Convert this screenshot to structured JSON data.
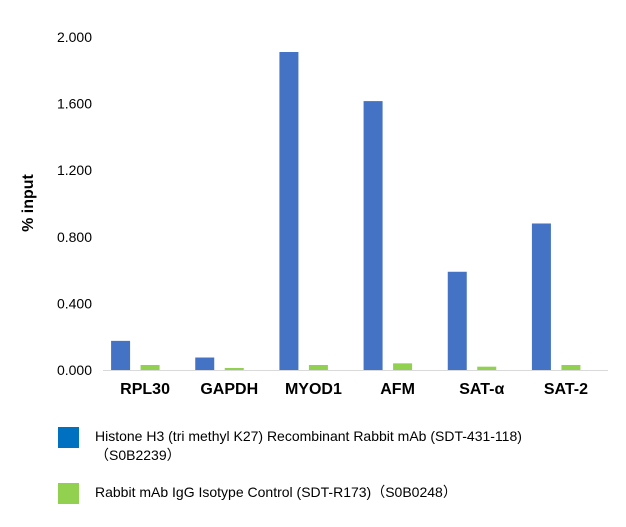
{
  "chart_data": {
    "type": "bar",
    "ylabel": "% input",
    "xlabel": "",
    "title": "",
    "ylim": [
      0,
      2.0
    ],
    "yticks": [
      "0.000",
      "0.400",
      "0.800",
      "1.200",
      "1.600",
      "2.000"
    ],
    "ytick_values": [
      0,
      0.4,
      0.8,
      1.2,
      1.6,
      2.0
    ],
    "categories": [
      "RPL30",
      "GAPDH",
      "MYOD1",
      "AFM",
      "SAT-α",
      "SAT-2"
    ],
    "series": [
      {
        "name": "Histone H3 (tri methyl K27) Recombinant Rabbit mAb (SDT-431-118)（S0B2239）",
        "color": "#4472c4",
        "values": [
          0.175,
          0.075,
          1.91,
          1.615,
          0.59,
          0.88
        ]
      },
      {
        "name": "Rabbit mAb IgG Isotype Control (SDT-R173)（S0B0248）",
        "color": "#92d050",
        "values": [
          0.03,
          0.012,
          0.03,
          0.04,
          0.02,
          0.03
        ]
      }
    ],
    "grid": false,
    "legend_position": "bottom"
  },
  "legend": {
    "items": [
      {
        "label": "Histone H3 (tri methyl K27) Recombinant Rabbit mAb (SDT-431-118)",
        "label2": "（S0B2239）",
        "color": "#0070c0"
      },
      {
        "label": "Rabbit mAb IgG Isotype Control (SDT-R173)（S0B0248）",
        "label2": "",
        "color": "#92d050"
      }
    ]
  }
}
